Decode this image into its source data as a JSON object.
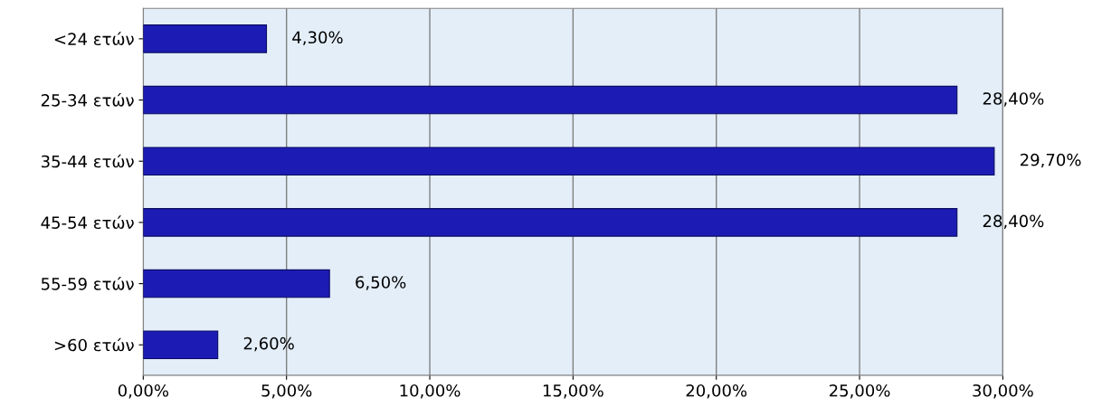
{
  "chart_data": {
    "type": "bar",
    "orientation": "horizontal",
    "categories": [
      "<24 ετών",
      "25-34 ετών",
      "35-44 ετών",
      "45-54 ετών",
      "55-59 ετών",
      ">60 ετών"
    ],
    "values": [
      4.3,
      28.4,
      29.7,
      28.4,
      6.5,
      2.6
    ],
    "value_labels": [
      "4,30%",
      "28,40%",
      "29,70%",
      "28,40%",
      "6,50%",
      "2,60%"
    ],
    "color": "#1c1cb4",
    "xlim": [
      0,
      30
    ],
    "xticks": [
      {
        "value": 0,
        "label": "0,00%"
      },
      {
        "value": 5,
        "label": "5,00%"
      },
      {
        "value": 10,
        "label": "10,00%"
      },
      {
        "value": 15,
        "label": "15,00%"
      },
      {
        "value": 20,
        "label": "20,00%"
      },
      {
        "value": 25,
        "label": "25,00%"
      },
      {
        "value": 30,
        "label": "30,00%"
      }
    ],
    "grid": "x"
  }
}
